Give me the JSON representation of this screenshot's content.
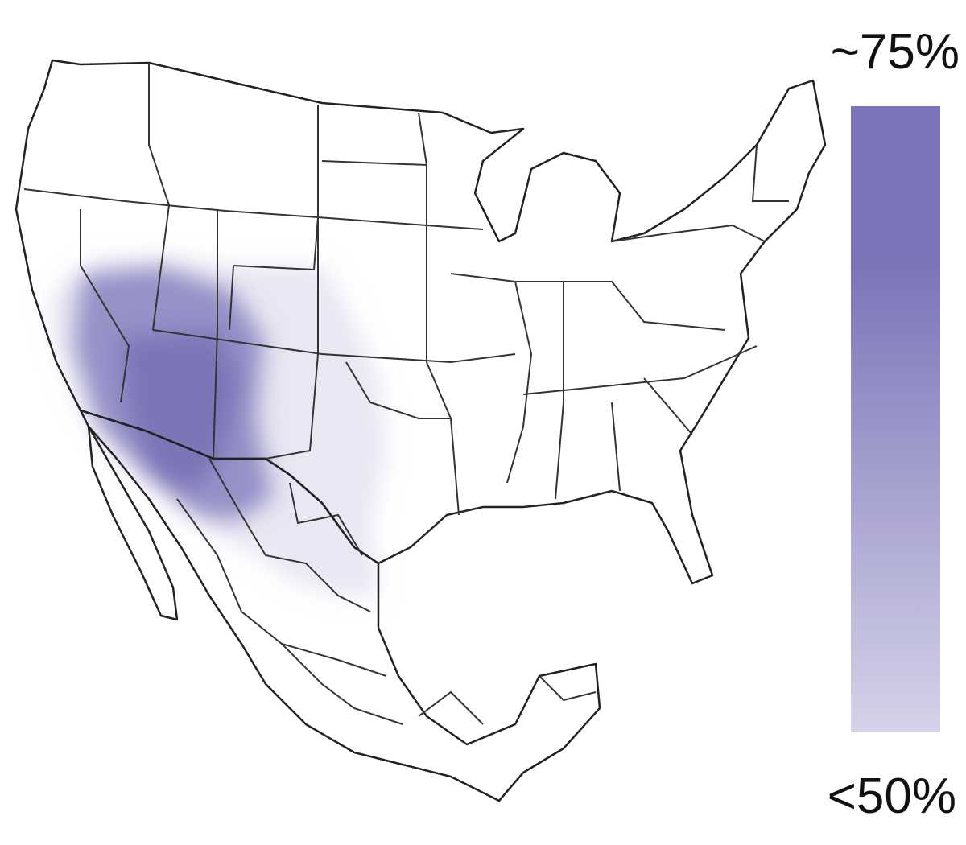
{
  "legend": {
    "max_label": "~75%",
    "min_label": "<50%",
    "color_max": "#7b74b8",
    "color_min": "#d5d3e9"
  }
}
